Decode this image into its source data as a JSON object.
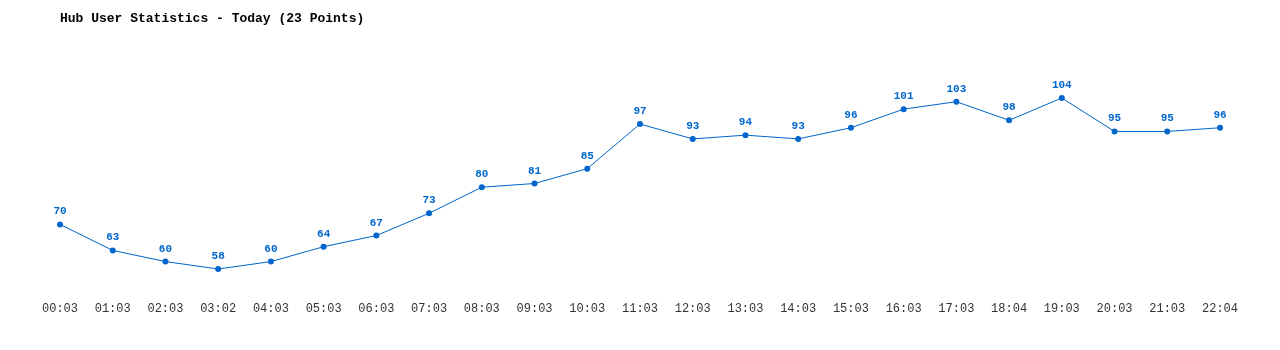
{
  "chart_data": {
    "type": "line",
    "title": "Hub User Statistics - Today (23 Points)",
    "categories": [
      "00:03",
      "01:03",
      "02:03",
      "03:02",
      "04:03",
      "05:03",
      "06:03",
      "07:03",
      "08:03",
      "09:03",
      "10:03",
      "11:03",
      "12:03",
      "13:03",
      "14:03",
      "15:03",
      "16:03",
      "17:03",
      "18:04",
      "19:03",
      "20:03",
      "21:03",
      "22:04"
    ],
    "series": [
      {
        "color": "#0066cc",
        "values": [
          70,
          63,
          60,
          58,
          60,
          64,
          67,
          73,
          80,
          81,
          85,
          97,
          93,
          94,
          93,
          96,
          101,
          103,
          98,
          104,
          95,
          95,
          96
        ]
      }
    ],
    "data_labels": true,
    "marker": "circle"
  }
}
